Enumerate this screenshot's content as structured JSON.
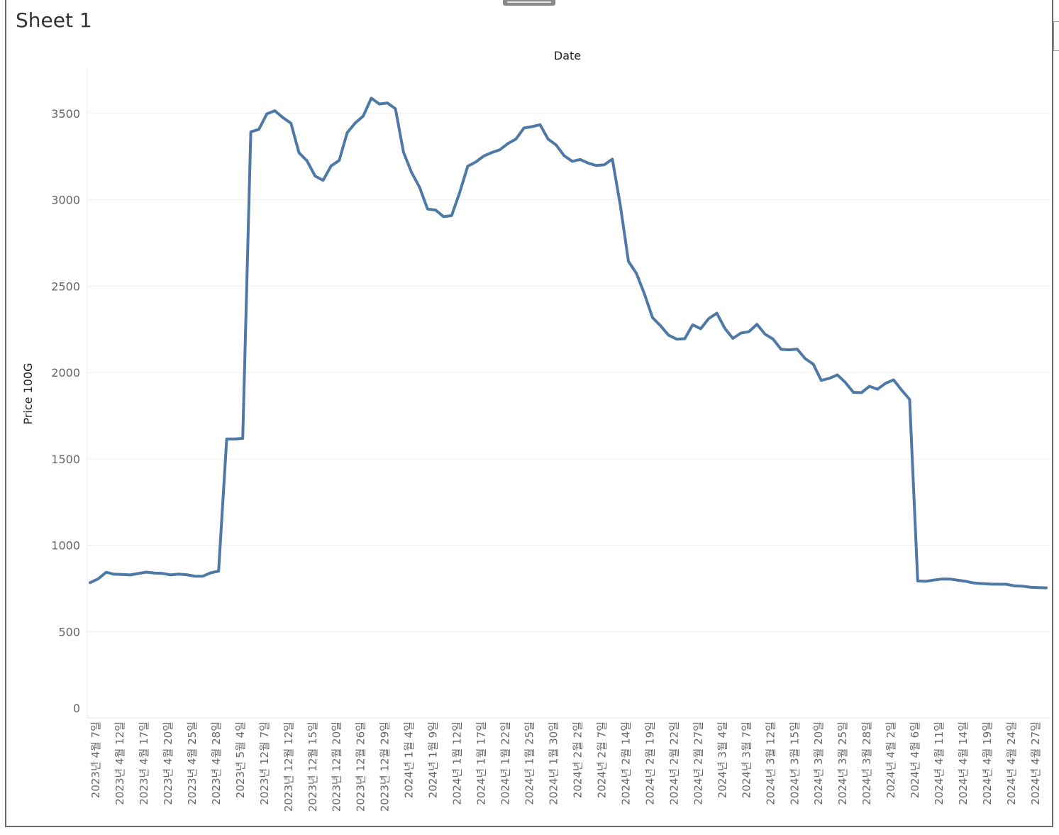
{
  "sheet": {
    "title": "Sheet 1"
  },
  "colors": {
    "line": "#4e79a7",
    "grid": "#efefef",
    "frame": "#6b6b6b"
  },
  "chart_data": {
    "type": "line",
    "title": "Date",
    "xlabel": "Date",
    "ylabel": "Price 100G",
    "ylim": [
      0,
      3800
    ],
    "yticks": [
      0,
      500,
      1000,
      1500,
      2000,
      2500,
      3000,
      3500
    ],
    "grid": true,
    "x_tick_labels": [
      "2023년 4월 7일",
      "2023년 4월 12일",
      "2023년 4월 17일",
      "2023년 4월 20일",
      "2023년 4월 25일",
      "2023년 4월 28일",
      "2023년 5월 4일",
      "2023년 12월 7일",
      "2023년 12월 12일",
      "2023년 12월 15일",
      "2023년 12월 20일",
      "2023년 12월 26일",
      "2023년 12월 29일",
      "2024년 1월 4일",
      "2024년 1월 9일",
      "2024년 1월 12일",
      "2024년 1월 17일",
      "2024년 1월 22일",
      "2024년 1월 25일",
      "2024년 1월 30일",
      "2024년 2월 2일",
      "2024년 2월 7일",
      "2024년 2월 14일",
      "2024년 2월 19일",
      "2024년 2월 22일",
      "2024년 2월 27일",
      "2024년 3월 4일",
      "2024년 3월 7일",
      "2024년 3월 12일",
      "2024년 3월 15일",
      "2024년 3월 20일",
      "2024년 3월 25일",
      "2024년 3월 28일",
      "2024년 4월 2일",
      "2024년 4월 6일",
      "2024년 4월 11일",
      "2024년 4월 14일",
      "2024년 4월 19일",
      "2024년 4월 24일",
      "2024년 4월 27일"
    ],
    "series": [
      {
        "values": [
          783,
          805,
          843,
          832,
          831,
          828,
          836,
          844,
          839,
          837,
          828,
          833,
          829,
          821,
          820,
          840,
          850,
          1615,
          1615,
          1618,
          3393,
          3407,
          3497,
          3515,
          3475,
          3443,
          3272,
          3225,
          3137,
          3112,
          3196,
          3227,
          3388,
          3444,
          3484,
          3588,
          3554,
          3560,
          3527,
          3276,
          3159,
          3073,
          2946,
          2940,
          2902,
          2908,
          3042,
          3194,
          3218,
          3253,
          3273,
          3289,
          3325,
          3351,
          3415,
          3423,
          3434,
          3351,
          3317,
          3255,
          3222,
          3233,
          3212,
          3198,
          3202,
          3235,
          2966,
          2643,
          2573,
          2454,
          2318,
          2270,
          2216,
          2193,
          2195,
          2276,
          2253,
          2312,
          2343,
          2255,
          2197,
          2228,
          2236,
          2279,
          2222,
          2193,
          2134,
          2131,
          2135,
          2080,
          2048,
          1954,
          1966,
          1986,
          1942,
          1885,
          1883,
          1920,
          1903,
          1937,
          1957,
          1898,
          1844,
          793,
          791,
          798,
          804,
          804,
          797,
          791,
          781,
          778,
          775,
          774,
          774,
          765,
          763,
          757,
          755,
          753
        ]
      }
    ]
  }
}
